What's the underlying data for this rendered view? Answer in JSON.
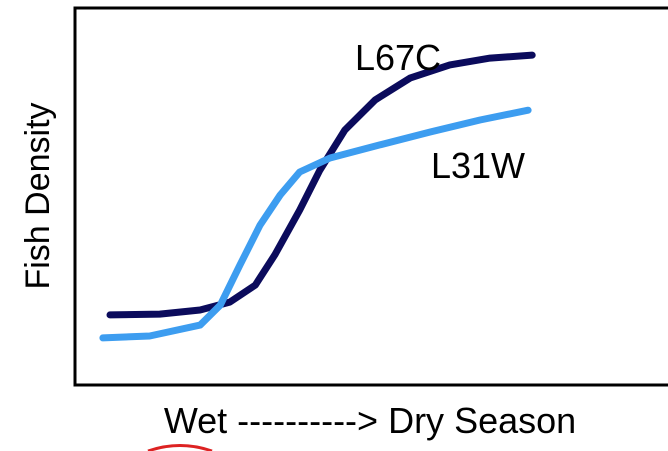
{
  "chart_data": {
    "type": "line",
    "x_label": "Wet ----------> Dry Season",
    "y_label": "Fish Density",
    "xlim": [
      0,
      100
    ],
    "ylim": [
      0,
      100
    ],
    "series": [
      {
        "name": "L67C",
        "color": "#0b0b5c",
        "x": [
          5.9,
          14.3,
          21.1,
          26.1,
          30.4,
          33.7,
          37.9,
          41.3,
          45.5,
          50.6,
          56.5,
          63.2,
          70.0,
          77.1
        ],
        "values": [
          18.6,
          18.8,
          19.9,
          22.0,
          26.5,
          34.5,
          46.4,
          57.0,
          67.6,
          75.6,
          81.4,
          84.9,
          86.7,
          87.5
        ]
      },
      {
        "name": "L31W",
        "color": "#3d9df0",
        "x": [
          4.7,
          12.6,
          21.1,
          24.5,
          27.8,
          31.2,
          34.6,
          37.9,
          43.0,
          51.4,
          59.9,
          68.3,
          76.4
        ],
        "values": [
          12.5,
          13.0,
          15.9,
          21.2,
          31.8,
          42.4,
          50.4,
          56.5,
          60.2,
          63.7,
          67.1,
          70.3,
          72.9
        ]
      }
    ]
  }
}
